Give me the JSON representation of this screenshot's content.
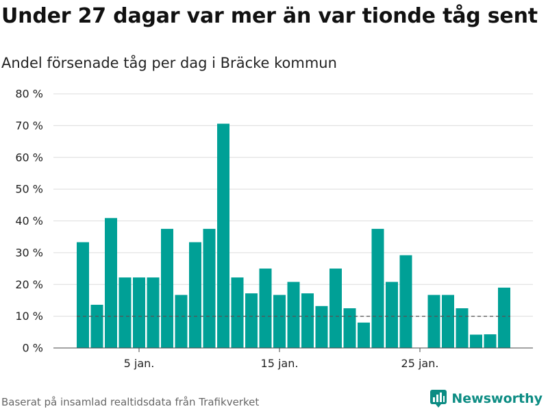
{
  "title": "Under 27 dagar var mer än var tionde tåg sent",
  "subtitle": "Andel försenade tåg per dag i Bräcke kommun",
  "source": "Baserat på insamlad realtidsdata från Trafikverket",
  "brand": {
    "name": "Newsworthy",
    "color": "#0c8c83"
  },
  "chart_data": {
    "type": "bar",
    "x": [
      1,
      2,
      3,
      4,
      5,
      6,
      7,
      8,
      9,
      10,
      11,
      12,
      13,
      14,
      15,
      16,
      17,
      18,
      19,
      20,
      21,
      22,
      23,
      24,
      25,
      26,
      27,
      28,
      29,
      30,
      31
    ],
    "values": [
      33.3,
      13.6,
      40.9,
      22.2,
      22.2,
      22.2,
      37.5,
      16.7,
      33.3,
      37.5,
      70.6,
      22.2,
      17.2,
      25.0,
      16.7,
      20.8,
      17.2,
      13.2,
      25.0,
      12.5,
      8.0,
      37.5,
      20.8,
      29.2,
      0,
      16.7,
      16.7,
      12.5,
      4.2,
      4.3,
      19.0
    ],
    "unit": "%",
    "ylim": [
      0,
      80
    ],
    "yticks": [
      0,
      10,
      20,
      30,
      40,
      50,
      60,
      70,
      80
    ],
    "ytick_labels": [
      "0 %",
      "10 %",
      "20 %",
      "30 %",
      "40 %",
      "50 %",
      "60 %",
      "70 %",
      "80 %"
    ],
    "xticks": [
      5,
      15,
      25
    ],
    "xtick_labels": [
      "5 jan.",
      "15 jan.",
      "25 jan."
    ],
    "reference_line": 10,
    "bar_color": "#00a096",
    "grid": true
  }
}
